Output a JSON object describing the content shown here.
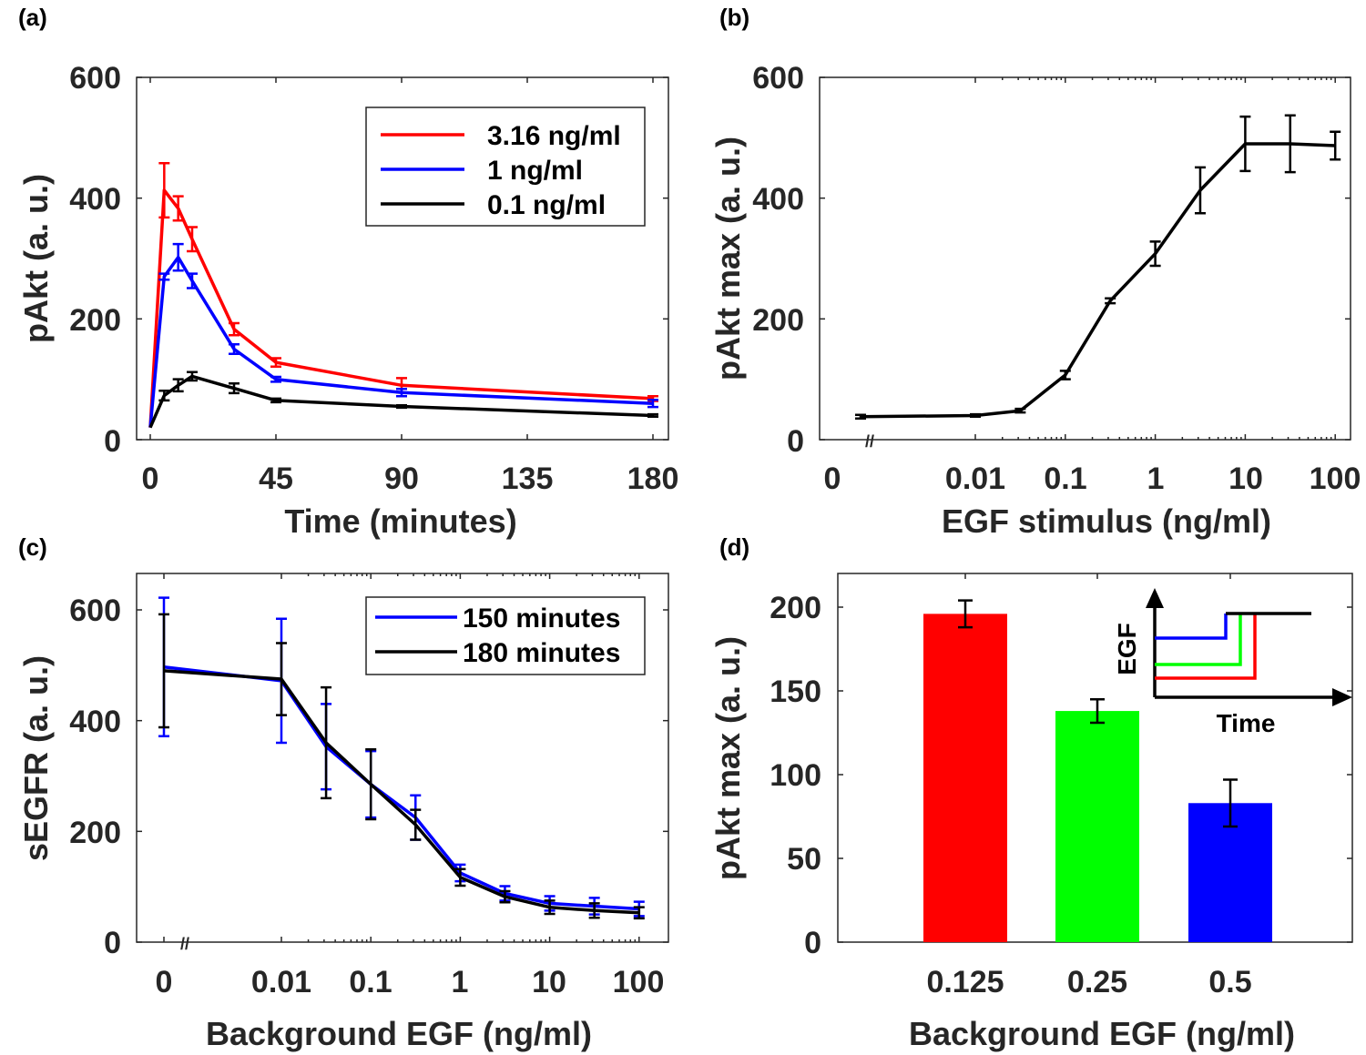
{
  "colors": {
    "red": "#ff0000",
    "blue": "#0000ff",
    "black": "#000000",
    "green": "#00ff00",
    "axis": "#262626"
  },
  "chart_data": [
    {
      "id": "a",
      "panel_label": "(a)",
      "type": "line",
      "xlabel": "Time (minutes)",
      "ylabel": "pAkt (a. u.)",
      "xlim": [
        -5,
        185
      ],
      "ylim": [
        0,
        600
      ],
      "xticks": [
        0,
        45,
        90,
        135,
        180
      ],
      "xtick_labels": [
        "0",
        "45",
        "90",
        "135",
        "180"
      ],
      "yticks": [
        0,
        200,
        400,
        600
      ],
      "ytick_labels": [
        "0",
        "200",
        "400",
        "600"
      ],
      "legend_position": "top-right",
      "series": [
        {
          "name": "3.16 ng/ml",
          "color": "#ff0000",
          "x": [
            0,
            5,
            10,
            15,
            30,
            45,
            90,
            180
          ],
          "y": [
            20,
            413,
            383,
            332,
            183,
            128,
            90,
            68
          ],
          "err": [
            0,
            45,
            20,
            20,
            10,
            7,
            12,
            4
          ]
        },
        {
          "name": "1 ng/ml",
          "color": "#0000ff",
          "x": [
            0,
            5,
            10,
            15,
            30,
            45,
            90,
            180
          ],
          "y": [
            20,
            270,
            302,
            263,
            150,
            100,
            78,
            60
          ],
          "err": [
            0,
            5,
            22,
            12,
            8,
            4,
            6,
            6
          ]
        },
        {
          "name": "0.1 ng/ml",
          "color": "#000000",
          "x": [
            0,
            5,
            10,
            15,
            30,
            45,
            90,
            180
          ],
          "y": [
            20,
            73,
            90,
            105,
            85,
            65,
            55,
            40
          ],
          "err": [
            0,
            8,
            10,
            7,
            8,
            3,
            2,
            2
          ]
        }
      ]
    },
    {
      "id": "b",
      "panel_label": "(b)",
      "type": "line",
      "xscale": "log-with-zero",
      "xlabel": "EGF stimulus (ng/ml)",
      "ylabel": "pAkt max (a. u.)",
      "ylim": [
        0,
        600
      ],
      "xtick_labels": [
        "0",
        "0.01",
        "0.1",
        "1",
        "10",
        "100"
      ],
      "yticks": [
        0,
        200,
        400,
        600
      ],
      "ytick_labels": [
        "0",
        "200",
        "400",
        "600"
      ],
      "series": [
        {
          "name": "pAkt max",
          "color": "#000000",
          "x": [
            0,
            0.01,
            0.0316,
            0.1,
            0.316,
            1,
            3.16,
            10,
            31.6,
            100
          ],
          "y": [
            38,
            40,
            48,
            107,
            230,
            308,
            413,
            490,
            490,
            487
          ],
          "err": [
            3,
            2,
            3,
            7,
            4,
            20,
            38,
            45,
            47,
            23
          ]
        }
      ]
    },
    {
      "id": "c",
      "panel_label": "(c)",
      "type": "line",
      "xscale": "log-with-zero",
      "xlabel": "Background EGF (ng/ml)",
      "ylabel": "sEGFR (a. u.)",
      "ylim": [
        0,
        600
      ],
      "xtick_labels": [
        "0",
        "0.01",
        "0.1",
        "1",
        "10",
        "100"
      ],
      "yticks": [
        0,
        200,
        400,
        600
      ],
      "ytick_labels": [
        "0",
        "200",
        "400",
        "600"
      ],
      "legend_position": "top-right",
      "series": [
        {
          "name": "150 minutes",
          "color": "#0000ff",
          "x": [
            0,
            0.01,
            0.0316,
            0.1,
            0.316,
            1,
            3.16,
            10,
            31.6,
            100
          ],
          "y": [
            497,
            472,
            353,
            285,
            225,
            125,
            88,
            70,
            65,
            60
          ],
          "err": [
            125,
            112,
            77,
            60,
            40,
            15,
            13,
            13,
            15,
            13
          ]
        },
        {
          "name": "180 minutes",
          "color": "#000000",
          "x": [
            0,
            0.01,
            0.0316,
            0.1,
            0.316,
            1,
            3.16,
            10,
            31.6,
            100
          ],
          "y": [
            490,
            475,
            360,
            285,
            212,
            117,
            82,
            63,
            57,
            53
          ],
          "err": [
            102,
            65,
            100,
            63,
            27,
            15,
            10,
            12,
            13,
            10
          ]
        }
      ]
    },
    {
      "id": "d",
      "panel_label": "(d)",
      "type": "bar",
      "xlabel": "Background EGF (ng/ml)",
      "ylabel": "pAkt max (a. u.)",
      "ylim": [
        0,
        220
      ],
      "yticks": [
        0,
        50,
        100,
        150,
        200
      ],
      "ytick_labels": [
        "0",
        "50",
        "100",
        "150",
        "200"
      ],
      "categories": [
        "0.125",
        "0.25",
        "0.5"
      ],
      "values": [
        196,
        138,
        83
      ],
      "err": [
        8,
        7,
        14
      ],
      "bar_colors": [
        "#ff0000",
        "#00ff00",
        "#0000ff"
      ],
      "inset": {
        "xlabel": "Time",
        "ylabel": "EGF",
        "step_colors": [
          "#ff0000",
          "#00ff00",
          "#0000ff",
          "#000000"
        ]
      }
    }
  ]
}
